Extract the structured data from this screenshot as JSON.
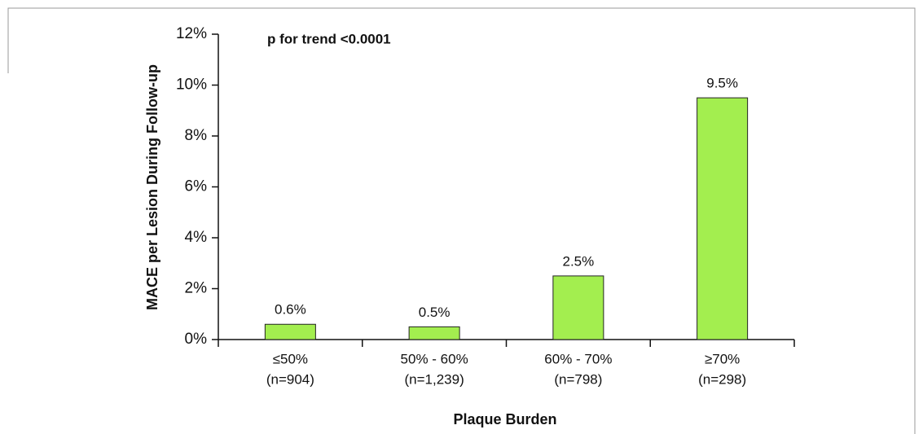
{
  "chart_data": {
    "type": "bar",
    "annotation": "p for trend <0.0001",
    "x_label": "Plaque Burden",
    "y_label": "MACE per Lesion During Follow-up",
    "categories": [
      "≤50%",
      "50% - 60%",
      "60% - 70%",
      "≥70%"
    ],
    "category_counts": [
      "(n=904)",
      "(n=1,239)",
      "(n=798)",
      "(n=298)"
    ],
    "values": [
      0.6,
      0.5,
      2.5,
      9.5
    ],
    "value_labels": [
      "0.6%",
      "0.5%",
      "2.5%",
      "9.5%"
    ],
    "color": "#a3ee4f",
    "ylim": [
      0,
      12
    ],
    "yticks": [
      {
        "value": 0,
        "label": "0%"
      },
      {
        "value": 2,
        "label": "2%"
      },
      {
        "value": 4,
        "label": "4%"
      },
      {
        "value": 6,
        "label": "6%"
      },
      {
        "value": 8,
        "label": "8%"
      },
      {
        "value": 10,
        "label": "10%"
      },
      {
        "value": 12,
        "label": "12%"
      }
    ]
  }
}
